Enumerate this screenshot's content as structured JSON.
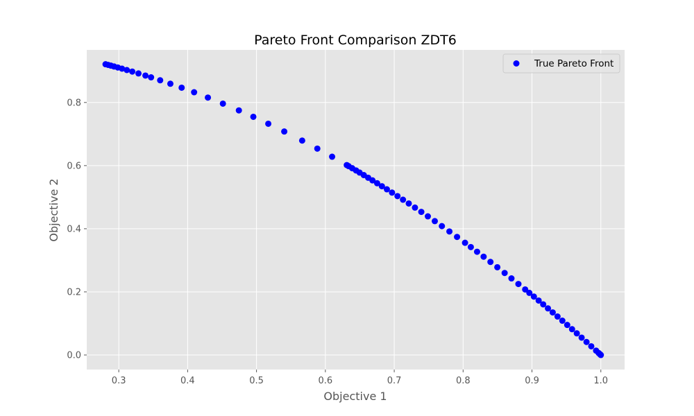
{
  "chart_data": {
    "type": "scatter",
    "title": "Pareto Front Comparison ZDT6",
    "xlabel": "Objective 1",
    "ylabel": "Objective 2",
    "xlim": [
      0.2535,
      1.0345
    ],
    "ylim": [
      -0.0461,
      0.9665
    ],
    "xticks": [
      0.3,
      0.4,
      0.5,
      0.6,
      0.7,
      0.8,
      0.9,
      1.0
    ],
    "xtick_labels": [
      "0.3",
      "0.4",
      "0.5",
      "0.6",
      "0.7",
      "0.8",
      "0.9",
      "1.0"
    ],
    "yticks": [
      0.0,
      0.2,
      0.4,
      0.6,
      0.8
    ],
    "ytick_labels": [
      "0.0",
      "0.2",
      "0.4",
      "0.6",
      "0.8"
    ],
    "grid": true,
    "legend_position": "top-right",
    "background_color": "#e5e5e5",
    "grid_color": "#ffffff",
    "series": [
      {
        "name": "True Pareto Front",
        "color": "#0000ff",
        "x": [
          0.2808,
          0.2846,
          0.2886,
          0.2932,
          0.2986,
          0.3047,
          0.3117,
          0.3196,
          0.3286,
          0.3387,
          0.3469,
          0.3601,
          0.3749,
          0.3913,
          0.4094,
          0.4294,
          0.4512,
          0.4744,
          0.4954,
          0.5171,
          0.5403,
          0.5663,
          0.5883,
          0.6098,
          0.6311,
          0.6337,
          0.6389,
          0.6445,
          0.6497,
          0.6558,
          0.6621,
          0.6684,
          0.6752,
          0.6821,
          0.6893,
          0.6968,
          0.7047,
          0.7127,
          0.7211,
          0.7301,
          0.7393,
          0.7488,
          0.7589,
          0.7692,
          0.7801,
          0.7912,
          0.8028,
          0.8112,
          0.8203,
          0.8298,
          0.8397,
          0.8497,
          0.8603,
          0.8702,
          0.8803,
          0.8901,
          0.8962,
          0.9028,
          0.9097,
          0.9163,
          0.9232,
          0.9301,
          0.9371,
          0.9441,
          0.9512,
          0.9582,
          0.9651,
          0.9721,
          0.9792,
          0.9861,
          0.9931,
          0.9968,
          0.9984,
          0.9993,
          1.0
        ],
        "y": [
          0.9211,
          0.919,
          0.9167,
          0.914,
          0.9108,
          0.9072,
          0.9028,
          0.8979,
          0.892,
          0.8853,
          0.8797,
          0.8703,
          0.8594,
          0.8469,
          0.8324,
          0.8156,
          0.7964,
          0.7749,
          0.7546,
          0.7326,
          0.7081,
          0.6793,
          0.6539,
          0.6281,
          0.6017,
          0.5984,
          0.5918,
          0.5846,
          0.5779,
          0.5699,
          0.5616,
          0.5532,
          0.5441,
          0.5347,
          0.5249,
          0.5145,
          0.5034,
          0.492,
          0.48,
          0.467,
          0.4534,
          0.4393,
          0.4241,
          0.4083,
          0.3914,
          0.374,
          0.3555,
          0.3419,
          0.3271,
          0.3114,
          0.2949,
          0.278,
          0.2599,
          0.2427,
          0.225,
          0.2077,
          0.1968,
          0.185,
          0.1725,
          0.1604,
          0.1477,
          0.1349,
          0.1218,
          0.1087,
          0.0952,
          0.0818,
          0.0686,
          0.055,
          0.0412,
          0.0276,
          0.0138,
          0.0064,
          0.0032,
          0.0014,
          0.0
        ]
      }
    ]
  }
}
